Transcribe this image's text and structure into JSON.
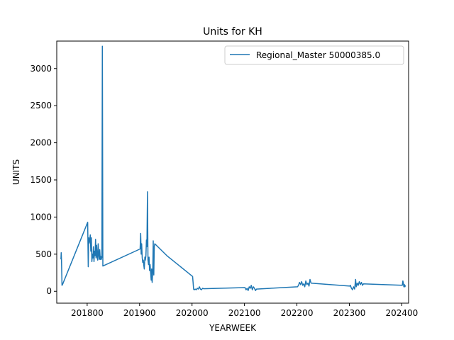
{
  "chart_data": {
    "type": "line",
    "title": "Units for KH",
    "xlabel": "YEARWEEK",
    "ylabel": "UNITS",
    "xlim": [
      201742,
      202413
    ],
    "ylim": [
      -160,
      3370
    ],
    "xticks": [
      201800,
      201900,
      202000,
      202100,
      202200,
      202300,
      202400
    ],
    "xtick_labels": [
      "201800",
      "201900",
      "202000",
      "202100",
      "202200",
      "202300",
      "202400"
    ],
    "yticks": [
      0,
      500,
      1000,
      1500,
      2000,
      2500,
      3000
    ],
    "ytick_labels": [
      "0",
      "500",
      "1000",
      "1500",
      "2000",
      "2500",
      "3000"
    ],
    "grid": false,
    "legend_position": "upper right",
    "series": [
      {
        "name": "Regional_Master 50000385.0",
        "color": "#1f77b4",
        "points": [
          [
            201750,
            430
          ],
          [
            201750.5,
            520
          ],
          [
            201751,
            420
          ],
          [
            201752,
            80
          ],
          [
            201753,
            90
          ],
          [
            201801,
            930
          ],
          [
            201802,
            330
          ],
          [
            201803,
            720
          ],
          [
            201804,
            650
          ],
          [
            201805,
            700
          ],
          [
            201806,
            760
          ],
          [
            201807,
            540
          ],
          [
            201808,
            720
          ],
          [
            201809,
            400
          ],
          [
            201810,
            500
          ],
          [
            201811,
            450
          ],
          [
            201812,
            600
          ],
          [
            201813,
            400
          ],
          [
            201814,
            540
          ],
          [
            201815,
            480
          ],
          [
            201816,
            700
          ],
          [
            201817,
            450
          ],
          [
            201818,
            620
          ],
          [
            201819,
            480
          ],
          [
            201820,
            420
          ],
          [
            201821,
            640
          ],
          [
            201822,
            500
          ],
          [
            201823,
            430
          ],
          [
            201824,
            560
          ],
          [
            201825,
            430
          ],
          [
            201826,
            470
          ],
          [
            201827,
            430
          ],
          [
            201828,
            460
          ],
          [
            201829,
            3300
          ],
          [
            201830,
            340
          ],
          [
            201901,
            570
          ],
          [
            201902,
            780
          ],
          [
            201903,
            500
          ],
          [
            201904,
            640
          ],
          [
            201905,
            450
          ],
          [
            201906,
            390
          ],
          [
            201907,
            420
          ],
          [
            201908,
            350
          ],
          [
            201909,
            300
          ],
          [
            201910,
            460
          ],
          [
            201911,
            420
          ],
          [
            201912,
            480
          ],
          [
            201913,
            690
          ],
          [
            201914,
            600
          ],
          [
            201915,
            1340
          ],
          [
            201916,
            420
          ],
          [
            201917,
            360
          ],
          [
            201918,
            460
          ],
          [
            201919,
            280
          ],
          [
            201920,
            360
          ],
          [
            201921,
            260
          ],
          [
            201922,
            150
          ],
          [
            201923,
            300
          ],
          [
            201924,
            120
          ],
          [
            201925,
            260
          ],
          [
            201926,
            680
          ],
          [
            201927,
            220
          ],
          [
            201928,
            600
          ],
          [
            201929,
            640
          ],
          [
            201952,
            480
          ],
          [
            202001,
            200
          ],
          [
            202002,
            120
          ],
          [
            202003,
            30
          ],
          [
            202004,
            20
          ],
          [
            202006,
            30
          ],
          [
            202008,
            20
          ],
          [
            202010,
            40
          ],
          [
            202012,
            30
          ],
          [
            202014,
            60
          ],
          [
            202016,
            30
          ],
          [
            202018,
            20
          ],
          [
            202020,
            40
          ],
          [
            202022,
            35
          ],
          [
            202101,
            50
          ],
          [
            202103,
            20
          ],
          [
            202105,
            40
          ],
          [
            202107,
            10
          ],
          [
            202109,
            60
          ],
          [
            202111,
            40
          ],
          [
            202113,
            80
          ],
          [
            202115,
            20
          ],
          [
            202117,
            60
          ],
          [
            202119,
            40
          ],
          [
            202121,
            10
          ],
          [
            202123,
            30
          ],
          [
            202201,
            60
          ],
          [
            202203,
            80
          ],
          [
            202205,
            120
          ],
          [
            202207,
            90
          ],
          [
            202209,
            130
          ],
          [
            202211,
            80
          ],
          [
            202213,
            100
          ],
          [
            202215,
            60
          ],
          [
            202217,
            140
          ],
          [
            202219,
            90
          ],
          [
            202221,
            110
          ],
          [
            202223,
            70
          ],
          [
            202225,
            160
          ],
          [
            202227,
            110
          ],
          [
            202301,
            70
          ],
          [
            202302,
            80
          ],
          [
            202304,
            40
          ],
          [
            202306,
            20
          ],
          [
            202308,
            60
          ],
          [
            202310,
            30
          ],
          [
            202312,
            160
          ],
          [
            202313,
            60
          ],
          [
            202315,
            110
          ],
          [
            202317,
            80
          ],
          [
            202319,
            130
          ],
          [
            202321,
            90
          ],
          [
            202323,
            120
          ],
          [
            202325,
            80
          ],
          [
            202327,
            100
          ],
          [
            202401,
            80
          ],
          [
            202402,
            140
          ],
          [
            202403,
            110
          ],
          [
            202404,
            60
          ],
          [
            202405,
            90
          ],
          [
            202406,
            60
          ],
          [
            202407,
            80
          ]
        ]
      }
    ]
  }
}
